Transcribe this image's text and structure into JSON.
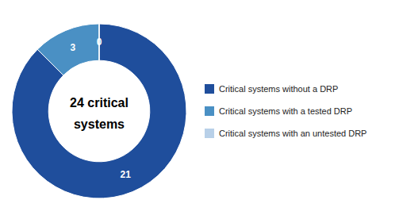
{
  "chart_data": {
    "type": "pie",
    "categories": [
      "Critical systems without a DRP",
      "Critical systems with a tested DRP",
      "Critical systems with an untested DRP"
    ],
    "values": [
      21,
      3,
      0.001
    ],
    "value_labels": [
      "21",
      "3",
      "0"
    ],
    "colors": [
      "#1F4E9C",
      "#4A90C4",
      "#B8D0E8"
    ],
    "annotations": [
      "24 critical",
      "systems"
    ],
    "data_labels": true,
    "legend": "right"
  }
}
